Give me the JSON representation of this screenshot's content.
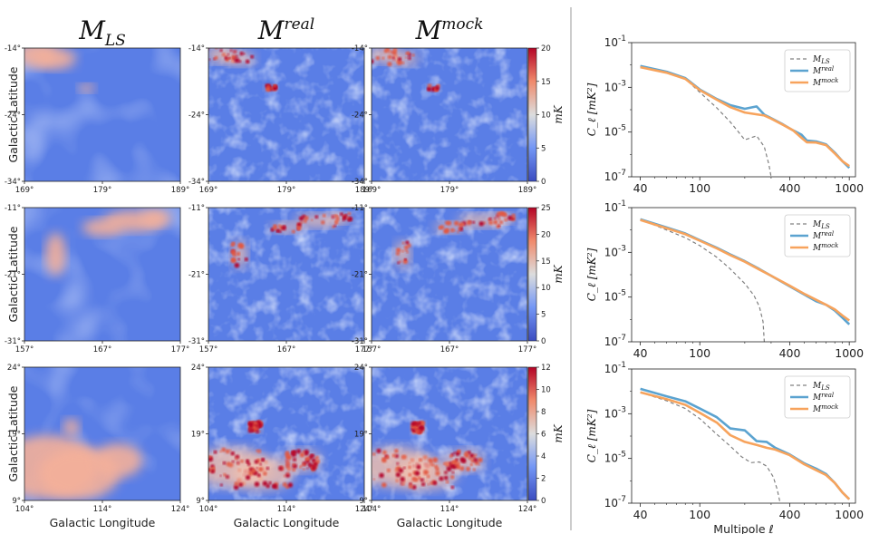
{
  "column_titles": [
    {
      "base": "M",
      "sub": "LS"
    },
    {
      "base": "M",
      "sup": "real"
    },
    {
      "base": "M",
      "sup": "mock"
    }
  ],
  "labels": {
    "galactic_latitude": "Galactic Latitude",
    "galactic_longitude": "Galactic Longitude",
    "colorbar_unit": "mK",
    "multipole": "Multipole ℓ",
    "cl_ylabel": "C_ℓ [mK²]"
  },
  "maps": [
    {
      "row": 1,
      "lat_ticks": [
        "-14°",
        "-24°",
        "-34°"
      ],
      "lon_ticks": [
        "169°",
        "179°",
        "189°"
      ],
      "colorbar": {
        "min": 0,
        "max": 20,
        "ticks": [
          "0",
          "5",
          "10",
          "15",
          "20"
        ]
      }
    },
    {
      "row": 2,
      "lat_ticks": [
        "-11°",
        "-21°",
        "-31°"
      ],
      "lon_ticks": [
        "157°",
        "167°",
        "177°"
      ],
      "colorbar": {
        "min": 0,
        "max": 25,
        "ticks": [
          "0",
          "5",
          "10",
          "15",
          "20",
          "25"
        ]
      }
    },
    {
      "row": 3,
      "lat_ticks": [
        "24°",
        "19°",
        "9°"
      ],
      "lon_ticks": [
        "104°",
        "114°",
        "124°"
      ],
      "colorbar": {
        "min": 0,
        "max": 12,
        "ticks": [
          "0",
          "2",
          "4",
          "6",
          "8",
          "10",
          "12"
        ]
      }
    }
  ],
  "chart_data": [
    {
      "type": "line",
      "xscale": "log",
      "yscale": "log",
      "xlim": [
        35,
        1100
      ],
      "ylim": [
        1e-07,
        0.1
      ],
      "xticks": [
        40,
        100,
        400,
        1000
      ],
      "ytick_labels": [
        {
          "exp": -1
        },
        {
          "exp": -3
        },
        {
          "exp": -5
        },
        {
          "exp": -7
        }
      ],
      "xlabel": "",
      "ylabel": "C_ℓ [mK²]",
      "legend_position": "top-right",
      "series": [
        {
          "name": "M_LS",
          "style": "dashed",
          "color": "#808080",
          "x": [
            40,
            60,
            80,
            100,
            130,
            160,
            200,
            240,
            270,
            290,
            300
          ],
          "y": [
            0.009,
            0.0045,
            0.0024,
            0.0006,
            0.00012,
            2.8e-05,
            4.5e-06,
            6.8e-06,
            2.2e-06,
            3.5e-07,
            1e-07
          ]
        },
        {
          "name": "M_real",
          "style": "solid",
          "color": "#5ba3d0",
          "x": [
            40,
            60,
            80,
            100,
            130,
            160,
            200,
            240,
            270,
            300,
            360,
            420,
            480,
            520,
            600,
            700,
            800,
            900,
            1000
          ],
          "y": [
            0.009,
            0.005,
            0.0026,
            0.0008,
            0.0003,
            0.00016,
            0.00011,
            0.00014,
            6e-05,
            4.2e-05,
            2.2e-05,
            1.2e-05,
            7.5e-06,
            4.2e-06,
            3.8e-06,
            2.8e-06,
            1.2e-06,
            5e-07,
            2.5e-07
          ]
        },
        {
          "name": "M_mock",
          "style": "solid",
          "color": "#f7a35c",
          "x": [
            40,
            60,
            80,
            100,
            130,
            160,
            200,
            240,
            270,
            300,
            360,
            420,
            480,
            520,
            600,
            700,
            800,
            900,
            1000
          ],
          "y": [
            0.008,
            0.0045,
            0.0024,
            0.00075,
            0.00028,
            0.00013,
            7.5e-05,
            6.2e-05,
            5.5e-05,
            4e-05,
            2.1e-05,
            1.2e-05,
            5.5e-06,
            3.5e-06,
            3.4e-06,
            2.6e-06,
            1.1e-06,
            5e-07,
            3e-07
          ]
        }
      ]
    },
    {
      "type": "line",
      "xscale": "log",
      "yscale": "log",
      "xlim": [
        35,
        1100
      ],
      "ylim": [
        1e-07,
        0.1
      ],
      "xticks": [
        40,
        100,
        400,
        1000
      ],
      "ytick_labels": [
        {
          "exp": -1
        },
        {
          "exp": -3
        },
        {
          "exp": -5
        },
        {
          "exp": -7
        }
      ],
      "xlabel": "",
      "ylabel": "C_ℓ [mK²]",
      "legend_position": "top-right",
      "series": [
        {
          "name": "M_LS",
          "style": "dashed",
          "color": "#808080",
          "x": [
            40,
            60,
            80,
            100,
            130,
            160,
            200,
            230,
            250,
            265,
            270
          ],
          "y": [
            0.03,
            0.01,
            0.0045,
            0.002,
            0.0006,
            0.00018,
            4e-05,
            1.2e-05,
            3.8e-06,
            8e-07,
            1e-07
          ]
        },
        {
          "name": "M_real",
          "style": "solid",
          "color": "#5ba3d0",
          "x": [
            40,
            60,
            80,
            100,
            130,
            160,
            200,
            250,
            300,
            400,
            500,
            600,
            700,
            800,
            900,
            1000
          ],
          "y": [
            0.03,
            0.013,
            0.007,
            0.0035,
            0.0016,
            0.0008,
            0.0004,
            0.00018,
            9e-05,
            3e-05,
            1.3e-05,
            6.5e-06,
            4.5e-06,
            2.5e-06,
            1.2e-06,
            6e-07
          ]
        },
        {
          "name": "M_mock",
          "style": "solid",
          "color": "#f7a35c",
          "x": [
            40,
            60,
            80,
            100,
            130,
            160,
            200,
            250,
            300,
            400,
            500,
            600,
            700,
            800,
            900,
            1000
          ],
          "y": [
            0.028,
            0.012,
            0.0065,
            0.0033,
            0.0015,
            0.00075,
            0.00038,
            0.00017,
            9e-05,
            3.2e-05,
            1.4e-05,
            7.5e-06,
            4.5e-06,
            2.8e-06,
            1.5e-06,
            9e-07
          ]
        }
      ]
    },
    {
      "type": "line",
      "xscale": "log",
      "yscale": "log",
      "xlim": [
        35,
        1100
      ],
      "ylim": [
        1e-07,
        0.1
      ],
      "xticks": [
        40,
        100,
        400,
        1000
      ],
      "ytick_labels": [
        {
          "exp": -1
        },
        {
          "exp": -3
        },
        {
          "exp": -5
        },
        {
          "exp": -7
        }
      ],
      "xlabel": "Multipole ℓ",
      "ylabel": "C_ℓ [mK²]",
      "legend_position": "top-right",
      "series": [
        {
          "name": "M_LS",
          "style": "dashed",
          "color": "#808080",
          "x": [
            40,
            60,
            80,
            100,
            130,
            160,
            190,
            220,
            250,
            280,
            310,
            330,
            345
          ],
          "y": [
            0.009,
            0.0038,
            0.0017,
            0.0006,
            0.00012,
            3.5e-05,
            1.2e-05,
            6.5e-06,
            7e-06,
            4.5e-06,
            1.5e-06,
            4e-07,
            1e-07
          ]
        },
        {
          "name": "M_real",
          "style": "solid",
          "color": "#5ba3d0",
          "x": [
            40,
            60,
            80,
            100,
            130,
            160,
            200,
            240,
            280,
            320,
            400,
            500,
            600,
            700,
            800,
            900,
            1000
          ],
          "y": [
            0.013,
            0.006,
            0.0036,
            0.0017,
            0.0007,
            0.00022,
            0.00018,
            6e-05,
            5.5e-05,
            3e-05,
            1.5e-05,
            6e-06,
            3.5e-06,
            2e-06,
            8e-07,
            3e-07,
            1.5e-07
          ]
        },
        {
          "name": "M_mock",
          "style": "solid",
          "color": "#f7a35c",
          "x": [
            40,
            60,
            80,
            100,
            130,
            160,
            200,
            240,
            280,
            320,
            400,
            500,
            600,
            700,
            800,
            900,
            1000
          ],
          "y": [
            0.009,
            0.0045,
            0.0025,
            0.0011,
            0.0004,
            0.00011,
            5.5e-05,
            4e-05,
            3e-05,
            2.5e-05,
            1.4e-05,
            5.5e-06,
            3e-06,
            1.8e-06,
            8e-07,
            3e-07,
            1.5e-07
          ]
        }
      ]
    }
  ]
}
